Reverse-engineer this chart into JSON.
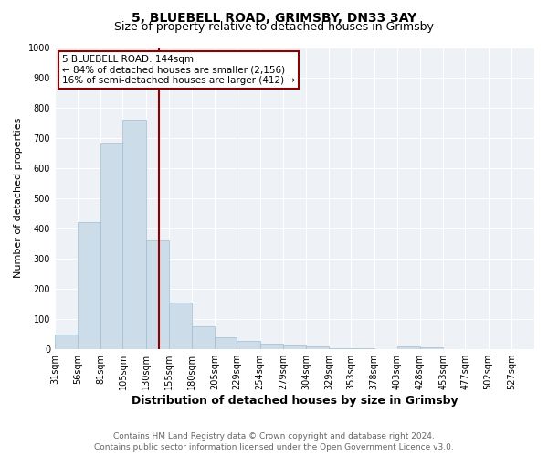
{
  "title": "5, BLUEBELL ROAD, GRIMSBY, DN33 3AY",
  "subtitle": "Size of property relative to detached houses in Grimsby",
  "xlabel": "Distribution of detached houses by size in Grimsby",
  "ylabel": "Number of detached properties",
  "bin_labels": [
    "31sqm",
    "56sqm",
    "81sqm",
    "105sqm",
    "130sqm",
    "155sqm",
    "180sqm",
    "205sqm",
    "229sqm",
    "254sqm",
    "279sqm",
    "304sqm",
    "329sqm",
    "353sqm",
    "378sqm",
    "403sqm",
    "428sqm",
    "453sqm",
    "477sqm",
    "502sqm",
    "527sqm"
  ],
  "bin_edges": [
    31,
    56,
    81,
    105,
    130,
    155,
    180,
    205,
    229,
    254,
    279,
    304,
    329,
    353,
    378,
    403,
    428,
    453,
    477,
    502,
    527
  ],
  "values": [
    50,
    420,
    680,
    760,
    360,
    155,
    75,
    40,
    27,
    17,
    12,
    8,
    4,
    3,
    1,
    9,
    6,
    0,
    0,
    0,
    0
  ],
  "bar_color": "#ccdce8",
  "bar_edge_color": "#a0bdd0",
  "vline_x": 144,
  "vline_color": "#8b0000",
  "annotation_line1": "5 BLUEBELL ROAD: 144sqm",
  "annotation_line2": "← 84% of detached houses are smaller (2,156)",
  "annotation_line3": "16% of semi-detached houses are larger (412) →",
  "annotation_box_color": "#ffffff",
  "annotation_box_edge_color": "#8b0000",
  "ylim": [
    0,
    1000
  ],
  "yticks": [
    0,
    100,
    200,
    300,
    400,
    500,
    600,
    700,
    800,
    900,
    1000
  ],
  "footer_line1": "Contains HM Land Registry data © Crown copyright and database right 2024.",
  "footer_line2": "Contains public sector information licensed under the Open Government Licence v3.0.",
  "bg_color": "#ffffff",
  "plot_bg_color": "#eef2f7",
  "title_fontsize": 10,
  "subtitle_fontsize": 9,
  "xlabel_fontsize": 9,
  "ylabel_fontsize": 8,
  "tick_fontsize": 7,
  "annotation_fontsize": 7.5,
  "footer_fontsize": 6.5
}
